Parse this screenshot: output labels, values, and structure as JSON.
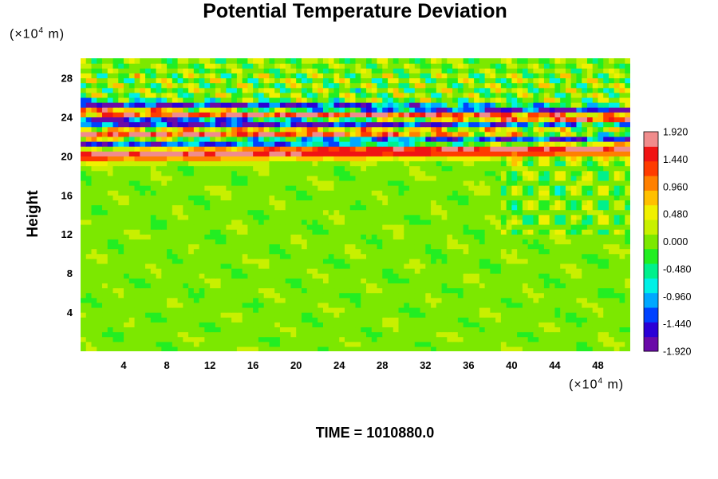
{
  "title": "Potential Temperature Deviation",
  "y_unit": "(×10",
  "y_unit_exp": "4",
  "y_unit_tail": " m)",
  "x_unit": "(×10",
  "x_unit_exp": "4",
  "x_unit_tail": " m)",
  "ylabel": "Height",
  "footer": "TIME = 1010880.0",
  "chart_data": {
    "type": "heatmap",
    "title": "Potential Temperature Deviation",
    "xlabel": "",
    "ylabel": "Height",
    "x_unit": "×10^4 m",
    "y_unit": "×10^4 m",
    "xlim": [
      0,
      51
    ],
    "ylim": [
      0,
      30
    ],
    "x_ticks": [
      "4",
      "8",
      "12",
      "16",
      "20",
      "24",
      "28",
      "32",
      "36",
      "40",
      "44",
      "48"
    ],
    "y_ticks": [
      "4",
      "8",
      "12",
      "16",
      "20",
      "24",
      "28"
    ],
    "colorbar": {
      "min": -1.92,
      "max": 1.92,
      "tick_labels": [
        "1.920",
        "1.440",
        "0.960",
        "0.480",
        "0.000",
        "-0.480",
        "-0.960",
        "-1.440",
        "-1.920"
      ],
      "colors": [
        "#6a0aa8",
        "#2b00d6",
        "#0042ff",
        "#00a8ff",
        "#00f0e6",
        "#00f08c",
        "#22ee22",
        "#7ce800",
        "#c8f000",
        "#f0f000",
        "#ffc000",
        "#ff8000",
        "#ff3c00",
        "#f01414",
        "#f08c8c"
      ]
    },
    "features": {
      "background_value": 0.0,
      "band_alternating_range": [
        19.5,
        25.5
      ],
      "noisy_wave_region": [
        20,
        29
      ]
    }
  }
}
